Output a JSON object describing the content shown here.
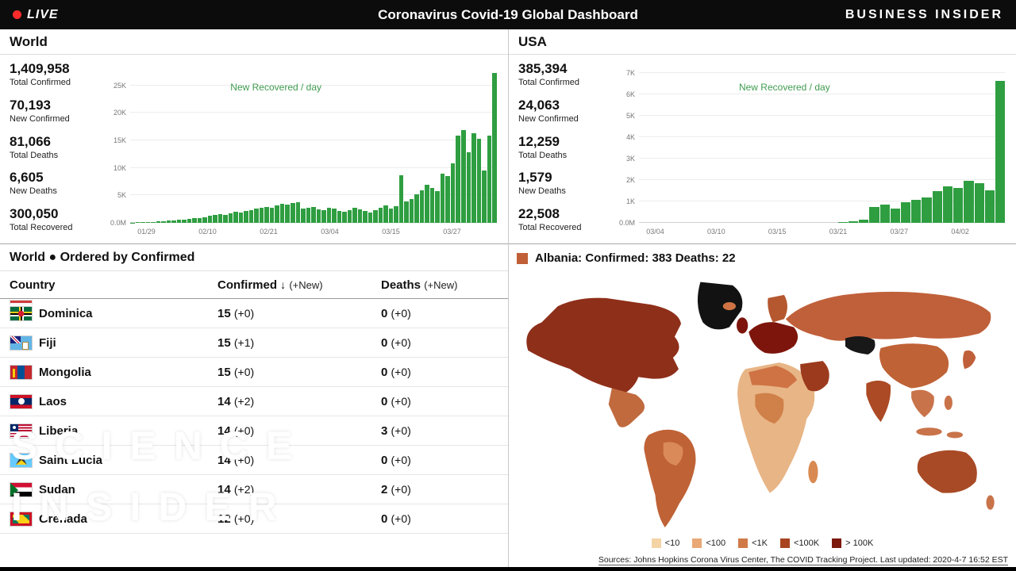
{
  "topbar": {
    "live_label": "LIVE",
    "title": "Coronavirus Covid-19 Global Dashboard",
    "brand": "BUSINESS INSIDER",
    "background_color": "#0c0c0c",
    "live_dot_color": "#ff2b2b"
  },
  "world_panel": {
    "title": "World",
    "chart_note": "New Recovered / day",
    "stats": [
      {
        "value": "1,409,958",
        "label": "Total Confirmed"
      },
      {
        "value": "70,193",
        "label": "New Confirmed"
      },
      {
        "value": "81,066",
        "label": "Total Deaths"
      },
      {
        "value": "6,605",
        "label": "New Deaths"
      },
      {
        "value": "300,050",
        "label": "Total Recovered"
      }
    ]
  },
  "usa_panel": {
    "title": "USA",
    "chart_note": "New Recovered / day",
    "stats": [
      {
        "value": "385,394",
        "label": "Total Confirmed"
      },
      {
        "value": "24,063",
        "label": "New Confirmed"
      },
      {
        "value": "12,259",
        "label": "Total Deaths"
      },
      {
        "value": "1,579",
        "label": "New Deaths"
      },
      {
        "value": "22,508",
        "label": "Total Recovered"
      }
    ]
  },
  "table_section": {
    "title": "World ● Ordered by Confirmed",
    "columns": {
      "country": "Country",
      "confirmed": "Confirmed",
      "sort_arrow": "↓",
      "new_suffix": "(+New)",
      "deaths": "Deaths"
    },
    "rows": [
      {
        "flag": "dominica",
        "country": "Dominica",
        "confirmed": "15",
        "confirmed_new": "(+0)",
        "deaths": "0",
        "deaths_new": "(+0)"
      },
      {
        "flag": "fiji",
        "country": "Fiji",
        "confirmed": "15",
        "confirmed_new": "(+1)",
        "deaths": "0",
        "deaths_new": "(+0)"
      },
      {
        "flag": "mongolia",
        "country": "Mongolia",
        "confirmed": "15",
        "confirmed_new": "(+0)",
        "deaths": "0",
        "deaths_new": "(+0)"
      },
      {
        "flag": "laos",
        "country": "Laos",
        "confirmed": "14",
        "confirmed_new": "(+2)",
        "deaths": "0",
        "deaths_new": "(+0)"
      },
      {
        "flag": "liberia",
        "country": "Liberia",
        "confirmed": "14",
        "confirmed_new": "(+0)",
        "deaths": "3",
        "deaths_new": "(+0)"
      },
      {
        "flag": "saint-lucia",
        "country": "Saint Lucia",
        "confirmed": "14",
        "confirmed_new": "(+0)",
        "deaths": "0",
        "deaths_new": "(+0)"
      },
      {
        "flag": "sudan",
        "country": "Sudan",
        "confirmed": "14",
        "confirmed_new": "(+2)",
        "deaths": "2",
        "deaths_new": "(+0)"
      },
      {
        "flag": "grenada",
        "country": "Grenada",
        "confirmed": "12",
        "confirmed_new": "(+0)",
        "deaths": "0",
        "deaths_new": "(+0)"
      }
    ]
  },
  "map_section": {
    "tooltip": {
      "swatch_color": "#c05f38",
      "text": "Albania: Confirmed: 383 Deaths: 22"
    },
    "legend": [
      {
        "label": "<10",
        "color": "#f4d3a4"
      },
      {
        "label": "<100",
        "color": "#e9a876"
      },
      {
        "label": "<1K",
        "color": "#d07a48"
      },
      {
        "label": "<100K",
        "color": "#a8431f"
      },
      {
        "label": "> 100K",
        "color": "#7c180d"
      }
    ],
    "sources": "Sources: Johns Hopkins Corona Virus Center, The COVID Tracking Project. Last updated: 2020-4-7 16:52 EST"
  },
  "watermark": {
    "line1": "SCIENCE",
    "line2": "INSIDER"
  },
  "chart_data": [
    {
      "type": "bar",
      "title": "World — New Recovered / day",
      "color": "#2f9e41",
      "ylim": [
        0,
        28000
      ],
      "y_tick_labels": [
        "25K",
        "20K",
        "15K",
        "10K",
        "5K"
      ],
      "y_tick_values": [
        25000,
        20000,
        15000,
        10000,
        5000
      ],
      "baseline_label": "0.0M",
      "x_tick_labels": [
        "01/29",
        "02/10",
        "02/21",
        "03/04",
        "03/15",
        "03/27"
      ],
      "values": [
        60,
        90,
        130,
        170,
        210,
        260,
        310,
        370,
        440,
        520,
        610,
        710,
        820,
        940,
        1080,
        1240,
        1420,
        1560,
        1450,
        1720,
        1980,
        1830,
        2150,
        2380,
        2560,
        2750,
        2950,
        2680,
        3150,
        3420,
        3260,
        3560,
        3780,
        2540,
        2760,
        2940,
        2520,
        2320,
        2740,
        2560,
        2140,
        1960,
        2340,
        2720,
        2520,
        2160,
        1940,
        2360,
        2780,
        3140,
        2560,
        2980,
        8600,
        3960,
        4380,
        5160,
        5940,
        6960,
        6420,
        5760,
        8940,
        8460,
        10860,
        15860,
        16920,
        12840,
        16380,
        15360,
        9480,
        15840,
        27300
      ]
    },
    {
      "type": "bar",
      "title": "USA — New Recovered / day",
      "color": "#2f9e41",
      "ylim": [
        0,
        7200
      ],
      "y_tick_labels": [
        "7K",
        "6K",
        "5K",
        "4K",
        "3K",
        "2K",
        "1K"
      ],
      "y_tick_values": [
        7000,
        6000,
        5000,
        4000,
        3000,
        2000,
        1000
      ],
      "baseline_label": "0.0M",
      "x_tick_labels": [
        "03/04",
        "03/10",
        "03/15",
        "03/21",
        "03/27",
        "04/02"
      ],
      "values": [
        0,
        0,
        0,
        0,
        0,
        0,
        0,
        0,
        0,
        0,
        0,
        0,
        0,
        0,
        0,
        0,
        0,
        0,
        0,
        40,
        80,
        140,
        760,
        840,
        660,
        980,
        1060,
        1180,
        1480,
        1720,
        1620,
        1980,
        1860,
        1540,
        6640
      ]
    }
  ]
}
